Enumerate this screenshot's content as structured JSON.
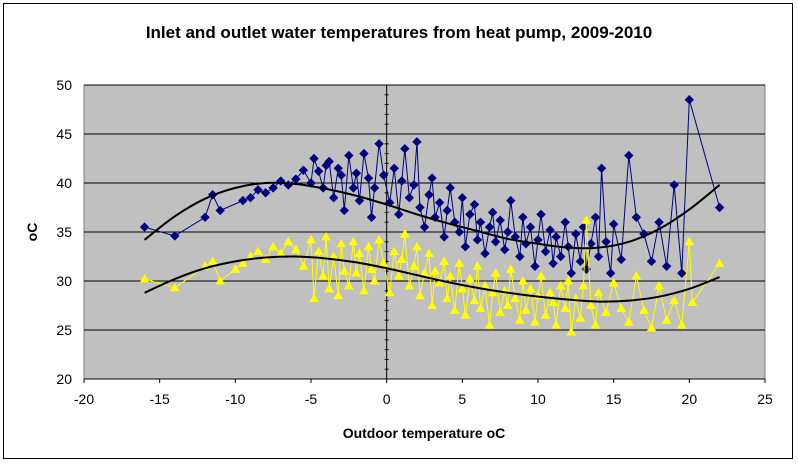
{
  "chart_data": {
    "type": "scatter",
    "title": "Inlet and outlet water temperatures from heat pump, 2009-2010",
    "xlabel": "Outdoor temperature oC",
    "ylabel": "oC",
    "xlim": [
      -20,
      25
    ],
    "ylim": [
      20,
      50
    ],
    "x_ticks": [
      -20,
      -15,
      -10,
      -5,
      0,
      5,
      10,
      15,
      20,
      25
    ],
    "y_ticks": [
      20,
      25,
      30,
      35,
      40,
      45,
      50
    ],
    "x_tick_labels": [
      "-20",
      "-15",
      "-10",
      "-5",
      "0",
      "5",
      "10",
      "15",
      "20",
      "25"
    ],
    "y_tick_labels": [
      "20",
      "25",
      "30",
      "35",
      "40",
      "45",
      "50"
    ],
    "grid": "horizontal",
    "plot_background": "#c0c0c0",
    "legend": "none",
    "series": [
      {
        "color": "#000080",
        "marker": "diamond",
        "connected": true,
        "points": [
          [
            -16,
            35.5
          ],
          [
            -14,
            34.6
          ],
          [
            -12,
            36.5
          ],
          [
            -11.5,
            38.8
          ],
          [
            -11,
            37.2
          ],
          [
            -9.5,
            38.2
          ],
          [
            -9,
            38.5
          ],
          [
            -8.5,
            39.3
          ],
          [
            -8,
            39.0
          ],
          [
            -7.5,
            39.5
          ],
          [
            -7,
            40.2
          ],
          [
            -6.5,
            39.8
          ],
          [
            -6,
            40.4
          ],
          [
            -5.5,
            41.3
          ],
          [
            -5,
            40.0
          ],
          [
            -4.8,
            42.5
          ],
          [
            -4.5,
            41.2
          ],
          [
            -4.2,
            39.5
          ],
          [
            -4,
            41.8
          ],
          [
            -3.8,
            42.2
          ],
          [
            -3.5,
            38.5
          ],
          [
            -3.2,
            41.5
          ],
          [
            -3,
            40.8
          ],
          [
            -2.8,
            37.2
          ],
          [
            -2.5,
            42.8
          ],
          [
            -2.2,
            39.5
          ],
          [
            -2,
            41.0
          ],
          [
            -1.8,
            38.2
          ],
          [
            -1.5,
            43.0
          ],
          [
            -1.2,
            40.5
          ],
          [
            -1,
            36.5
          ],
          [
            -0.8,
            39.5
          ],
          [
            -0.5,
            44.0
          ],
          [
            -0.2,
            40.8
          ],
          [
            0.2,
            38.0
          ],
          [
            0.5,
            41.5
          ],
          [
            0.8,
            36.8
          ],
          [
            1,
            40.2
          ],
          [
            1.2,
            43.5
          ],
          [
            1.5,
            38.5
          ],
          [
            1.8,
            39.8
          ],
          [
            2,
            44.2
          ],
          [
            2.2,
            37.5
          ],
          [
            2.5,
            35.5
          ],
          [
            2.8,
            38.8
          ],
          [
            3,
            40.5
          ],
          [
            3.2,
            36.5
          ],
          [
            3.5,
            38.0
          ],
          [
            3.8,
            34.5
          ],
          [
            4,
            37.2
          ],
          [
            4.2,
            39.5
          ],
          [
            4.5,
            36.0
          ],
          [
            4.8,
            35.0
          ],
          [
            5,
            38.5
          ],
          [
            5.2,
            33.5
          ],
          [
            5.5,
            36.8
          ],
          [
            5.8,
            37.8
          ],
          [
            6,
            34.2
          ],
          [
            6.2,
            36.0
          ],
          [
            6.5,
            32.8
          ],
          [
            6.8,
            35.5
          ],
          [
            7,
            37.0
          ],
          [
            7.2,
            34.0
          ],
          [
            7.5,
            36.2
          ],
          [
            7.8,
            33.2
          ],
          [
            8,
            35.0
          ],
          [
            8.2,
            38.2
          ],
          [
            8.5,
            34.5
          ],
          [
            8.8,
            32.5
          ],
          [
            9,
            36.5
          ],
          [
            9.2,
            33.8
          ],
          [
            9.5,
            35.5
          ],
          [
            9.8,
            31.5
          ],
          [
            10,
            34.2
          ],
          [
            10.2,
            36.8
          ],
          [
            10.5,
            33.0
          ],
          [
            10.8,
            35.2
          ],
          [
            11,
            31.8
          ],
          [
            11.2,
            34.5
          ],
          [
            11.5,
            32.5
          ],
          [
            11.8,
            36.0
          ],
          [
            12,
            33.5
          ],
          [
            12.2,
            30.8
          ],
          [
            12.5,
            34.8
          ],
          [
            12.8,
            32.0
          ],
          [
            13,
            35.5
          ],
          [
            13.2,
            31.2
          ],
          [
            13.5,
            33.8
          ],
          [
            13.8,
            36.5
          ],
          [
            14,
            32.5
          ],
          [
            14.2,
            41.5
          ],
          [
            14.5,
            34.0
          ],
          [
            14.8,
            30.8
          ],
          [
            15,
            35.8
          ],
          [
            15.5,
            32.2
          ],
          [
            16,
            42.8
          ],
          [
            16.5,
            36.5
          ],
          [
            17,
            34.8
          ],
          [
            17.5,
            32.0
          ],
          [
            18,
            36.0
          ],
          [
            18.5,
            31.5
          ],
          [
            19,
            39.8
          ],
          [
            19.5,
            30.8
          ],
          [
            20,
            48.5
          ],
          [
            22,
            37.5
          ]
        ]
      },
      {
        "color": "#ffff00",
        "marker": "triangle",
        "connected": true,
        "points": [
          [
            -16,
            30.2
          ],
          [
            -14,
            29.3
          ],
          [
            -12,
            31.5
          ],
          [
            -11.5,
            32.0
          ],
          [
            -11,
            30.0
          ],
          [
            -10,
            31.2
          ],
          [
            -9.5,
            31.8
          ],
          [
            -9,
            32.5
          ],
          [
            -8.5,
            33.0
          ],
          [
            -8,
            32.2
          ],
          [
            -7.5,
            33.5
          ],
          [
            -7,
            32.8
          ],
          [
            -6.5,
            34.0
          ],
          [
            -6,
            33.2
          ],
          [
            -5.5,
            31.5
          ],
          [
            -5,
            34.2
          ],
          [
            -4.8,
            28.2
          ],
          [
            -4.5,
            33.0
          ],
          [
            -4.2,
            30.5
          ],
          [
            -4,
            34.5
          ],
          [
            -3.8,
            29.2
          ],
          [
            -3.5,
            32.5
          ],
          [
            -3.2,
            28.5
          ],
          [
            -3,
            33.8
          ],
          [
            -2.8,
            31.0
          ],
          [
            -2.5,
            29.5
          ],
          [
            -2.2,
            34.0
          ],
          [
            -2,
            30.8
          ],
          [
            -1.8,
            32.8
          ],
          [
            -1.5,
            29.0
          ],
          [
            -1.2,
            33.5
          ],
          [
            -1,
            31.2
          ],
          [
            -0.8,
            30.0
          ],
          [
            -0.5,
            34.2
          ],
          [
            -0.2,
            31.8
          ],
          [
            0.2,
            28.8
          ],
          [
            0.5,
            33.0
          ],
          [
            0.8,
            30.5
          ],
          [
            1,
            32.2
          ],
          [
            1.2,
            34.8
          ],
          [
            1.5,
            29.5
          ],
          [
            1.8,
            31.5
          ],
          [
            2,
            33.5
          ],
          [
            2.2,
            28.5
          ],
          [
            2.5,
            30.8
          ],
          [
            2.8,
            32.8
          ],
          [
            3,
            27.5
          ],
          [
            3.2,
            31.0
          ],
          [
            3.5,
            29.8
          ],
          [
            3.8,
            32.0
          ],
          [
            4,
            28.2
          ],
          [
            4.2,
            30.5
          ],
          [
            4.5,
            27.0
          ],
          [
            4.8,
            31.8
          ],
          [
            5,
            29.2
          ],
          [
            5.2,
            26.5
          ],
          [
            5.5,
            30.2
          ],
          [
            5.8,
            28.0
          ],
          [
            6,
            31.5
          ],
          [
            6.2,
            27.2
          ],
          [
            6.5,
            29.5
          ],
          [
            6.8,
            25.5
          ],
          [
            7,
            28.8
          ],
          [
            7.2,
            30.8
          ],
          [
            7.5,
            26.8
          ],
          [
            7.8,
            29.0
          ],
          [
            8,
            27.5
          ],
          [
            8.2,
            31.2
          ],
          [
            8.5,
            28.2
          ],
          [
            8.8,
            26.0
          ],
          [
            9,
            30.0
          ],
          [
            9.2,
            27.0
          ],
          [
            9.5,
            29.2
          ],
          [
            9.8,
            25.8
          ],
          [
            10,
            28.5
          ],
          [
            10.2,
            30.5
          ],
          [
            10.5,
            26.5
          ],
          [
            10.8,
            28.8
          ],
          [
            11,
            27.8
          ],
          [
            11.2,
            25.5
          ],
          [
            11.5,
            29.5
          ],
          [
            11.8,
            27.2
          ],
          [
            12,
            30.0
          ],
          [
            12.2,
            24.8
          ],
          [
            12.5,
            28.2
          ],
          [
            12.8,
            26.2
          ],
          [
            13,
            29.5
          ],
          [
            13.2,
            36.2
          ],
          [
            13.5,
            27.5
          ],
          [
            13.8,
            25.5
          ],
          [
            14,
            28.8
          ],
          [
            14.5,
            26.8
          ],
          [
            15,
            29.8
          ],
          [
            15.5,
            27.2
          ],
          [
            16,
            25.8
          ],
          [
            16.5,
            30.5
          ],
          [
            17,
            27.0
          ],
          [
            17.5,
            25.2
          ],
          [
            18,
            29.5
          ],
          [
            18.5,
            26.0
          ],
          [
            19,
            28.0
          ],
          [
            19.5,
            25.5
          ],
          [
            20,
            34.0
          ],
          [
            20.2,
            27.8
          ],
          [
            22,
            31.8
          ]
        ]
      }
    ],
    "trendlines": [
      {
        "color": "#000000",
        "type": "polynomial",
        "points": [
          [
            -16,
            34.2
          ],
          [
            -14,
            36.6
          ],
          [
            -12,
            38.4
          ],
          [
            -10,
            39.5
          ],
          [
            -8,
            40.0
          ],
          [
            -6,
            39.9
          ],
          [
            -4,
            39.4
          ],
          [
            -2,
            38.7
          ],
          [
            0,
            37.8
          ],
          [
            2,
            36.8
          ],
          [
            4,
            35.9
          ],
          [
            6,
            35.1
          ],
          [
            8,
            34.3
          ],
          [
            10,
            33.8
          ],
          [
            12,
            33.4
          ],
          [
            14,
            33.4
          ],
          [
            16,
            34.0
          ],
          [
            18,
            35.3
          ],
          [
            20,
            37.3
          ],
          [
            22,
            39.8
          ]
        ]
      },
      {
        "color": "#000000",
        "type": "polynomial",
        "points": [
          [
            -16,
            28.8
          ],
          [
            -14,
            30.2
          ],
          [
            -12,
            31.3
          ],
          [
            -10,
            32.0
          ],
          [
            -8,
            32.4
          ],
          [
            -6,
            32.5
          ],
          [
            -4,
            32.3
          ],
          [
            -2,
            31.9
          ],
          [
            0,
            31.3
          ],
          [
            2,
            30.6
          ],
          [
            4,
            29.9
          ],
          [
            6,
            29.3
          ],
          [
            8,
            28.8
          ],
          [
            10,
            28.4
          ],
          [
            12,
            28.1
          ],
          [
            14,
            27.9
          ],
          [
            16,
            28.0
          ],
          [
            18,
            28.4
          ],
          [
            20,
            29.2
          ],
          [
            22,
            30.4
          ]
        ]
      }
    ]
  }
}
